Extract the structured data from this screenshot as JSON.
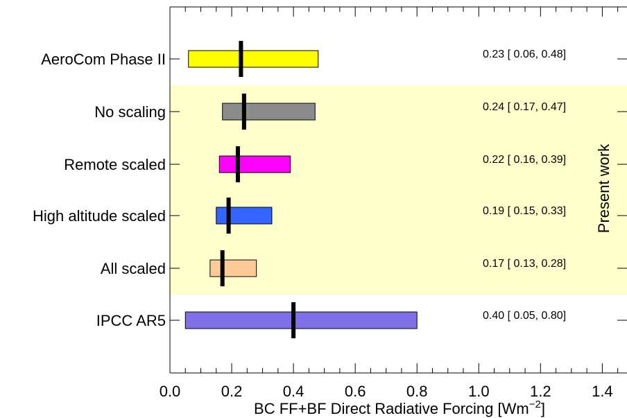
{
  "chart_data": {
    "type": "bar",
    "subtype": "range-with-median",
    "title": "",
    "xlabel": "BC FF+BF Direct Radiative Forcing [Wm",
    "xlabel_superscript": "−2",
    "xlabel_suffix": "]",
    "ylabel": "",
    "xlim": [
      0.0,
      1.48
    ],
    "xticks": [
      "0.0",
      "0.2",
      "0.4",
      "0.6",
      "0.8",
      "1.0",
      "1.2",
      "1.4"
    ],
    "grid": false,
    "legend": "none",
    "shaded_group_label": "Present work",
    "shaded_group_color": "#ffffcc",
    "categories": [
      "AeroCom Phase II",
      "No scaling",
      "Remote scaled",
      "High altitude scaled",
      "All scaled",
      "IPCC AR5"
    ],
    "series": [
      {
        "values_median": [
          0.23,
          0.24,
          0.22,
          0.19,
          0.17,
          0.4
        ],
        "values_low": [
          0.06,
          0.17,
          0.16,
          0.15,
          0.13,
          0.05
        ],
        "values_high": [
          0.48,
          0.47,
          0.39,
          0.33,
          0.28,
          0.8
        ],
        "colors": [
          "#ffff00",
          "#8c8c8c",
          "#ff00ff",
          "#3366ff",
          "#ffcc99",
          "#8070e8"
        ],
        "in_present_work": [
          false,
          true,
          true,
          true,
          true,
          false
        ]
      }
    ],
    "value_labels": [
      "0.23 [  0.06, 0.48]",
      "0.24 [ 0.17, 0.47]",
      "0.22 [ 0.16, 0.39]",
      "0.19 [ 0.15, 0.33]",
      "0.17 [ 0.13, 0.28]",
      "0.40 [  0.05, 0.80]"
    ]
  }
}
